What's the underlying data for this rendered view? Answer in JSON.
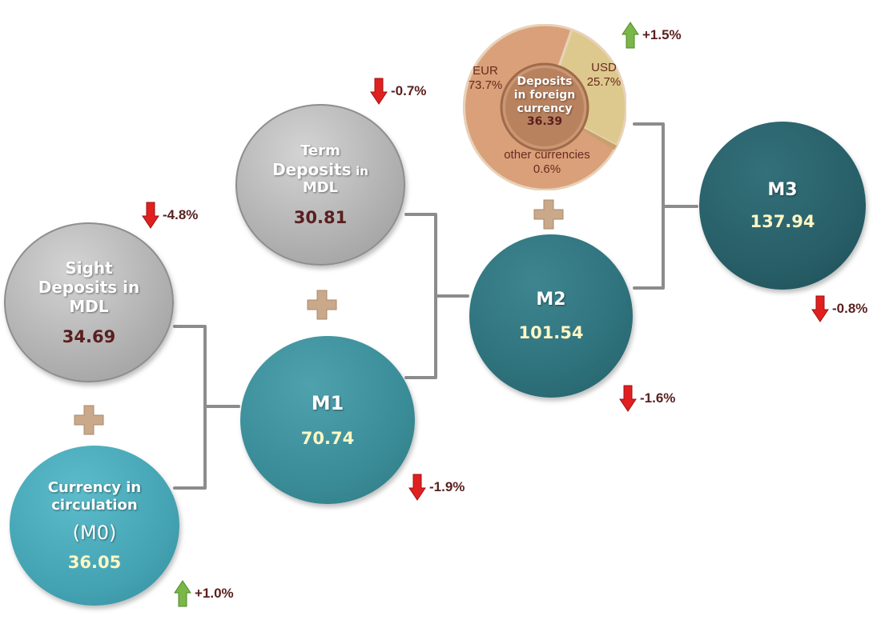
{
  "nodes": {
    "sight": {
      "line1": "Sight",
      "line2": "Deposits in",
      "line3": "MDL",
      "value": "34.69"
    },
    "term": {
      "line1": "Term",
      "line2a": "Deposits",
      "line2b": "in",
      "line3": "MDL",
      "value": "30.81"
    },
    "m0": {
      "line1": "Currency in",
      "line2": "circulation",
      "line3": "(M0)",
      "value": "36.05"
    },
    "m1": {
      "label": "M1",
      "value": "70.74"
    },
    "m2": {
      "label": "M2",
      "value": "101.54"
    },
    "m3": {
      "label": "M3",
      "value": "137.94"
    },
    "foreign": {
      "line1": "Deposits",
      "line2": "in foreign",
      "line3": "currency",
      "value": "36.39",
      "eur_label": "EUR",
      "eur_pct": "73.7%",
      "usd_label": "USD",
      "usd_pct": "25.7%",
      "other_label": "other currencies",
      "other_pct": "0.6%"
    }
  },
  "changes": {
    "sight": "-4.8%",
    "term": "-0.7%",
    "m0": "+1.0%",
    "m1": "-1.9%",
    "m2": "-1.6%",
    "m3": "-0.8%",
    "foreign": "+1.5%"
  },
  "colors": {
    "down": "#e02020",
    "up": "#7ab648",
    "bracket": "#8c8c8c",
    "plus": "#c9a98a"
  }
}
